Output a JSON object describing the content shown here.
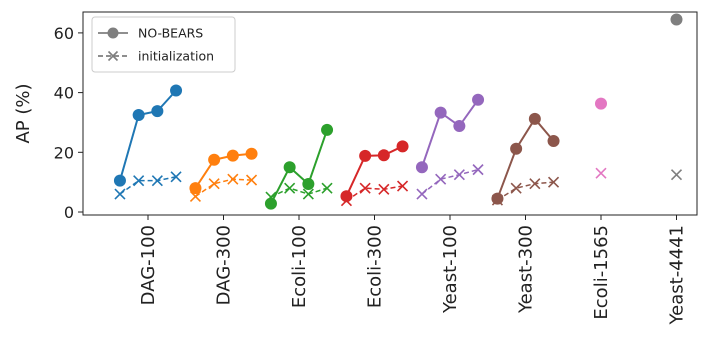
{
  "chart_data": {
    "type": "line",
    "ylabel": "AP (%)",
    "ylim": [
      -1,
      67
    ],
    "yticks": [
      0,
      20,
      40,
      60
    ],
    "categories": [
      "DAG-100",
      "DAG-300",
      "Ecoli-100",
      "Ecoli-300",
      "Yeast-100",
      "Yeast-300",
      "Ecoli-1565",
      "Yeast-4441"
    ],
    "legend": {
      "position": "top-left",
      "entries": [
        {
          "label": "NO-BEARS",
          "marker": "circle",
          "color": "#7f7f7f"
        },
        {
          "label": "initialization",
          "marker": "x",
          "color": "#7f7f7f"
        }
      ]
    },
    "groups": [
      {
        "category": "DAG-100",
        "color": "#1f77b4",
        "nobears": [
          10.5,
          32.5,
          33.8,
          40.7
        ],
        "init": [
          6.0,
          10.5,
          10.5,
          11.8
        ]
      },
      {
        "category": "DAG-300",
        "color": "#ff7f0e",
        "nobears": [
          8.0,
          17.5,
          18.9,
          19.5
        ],
        "init": [
          5.2,
          9.5,
          11.0,
          10.7
        ]
      },
      {
        "category": "Ecoli-100",
        "color": "#2ca02c",
        "nobears": [
          2.8,
          15.0,
          9.4,
          27.5
        ],
        "init": [
          5.0,
          8.0,
          6.0,
          8.0
        ]
      },
      {
        "category": "Ecoli-300",
        "color": "#d62728",
        "nobears": [
          5.3,
          18.8,
          19.0,
          22.0
        ],
        "init": [
          3.8,
          8.0,
          7.6,
          8.7
        ]
      },
      {
        "category": "Yeast-100",
        "color": "#9467bd",
        "nobears": [
          15.0,
          33.3,
          28.8,
          37.6
        ],
        "init": [
          6.0,
          11.0,
          12.5,
          14.2
        ]
      },
      {
        "category": "Yeast-300",
        "color": "#8c564b",
        "nobears": [
          4.5,
          21.2,
          31.2,
          23.8
        ],
        "init": [
          4.0,
          8.0,
          9.5,
          10.0
        ]
      },
      {
        "category": "Ecoli-1565",
        "color": "#e377c2",
        "nobears": [
          36.3
        ],
        "init": [
          13.0
        ]
      },
      {
        "category": "Yeast-4441",
        "color": "#7f7f7f",
        "nobears": [
          64.5
        ],
        "init": [
          12.5
        ]
      }
    ]
  }
}
